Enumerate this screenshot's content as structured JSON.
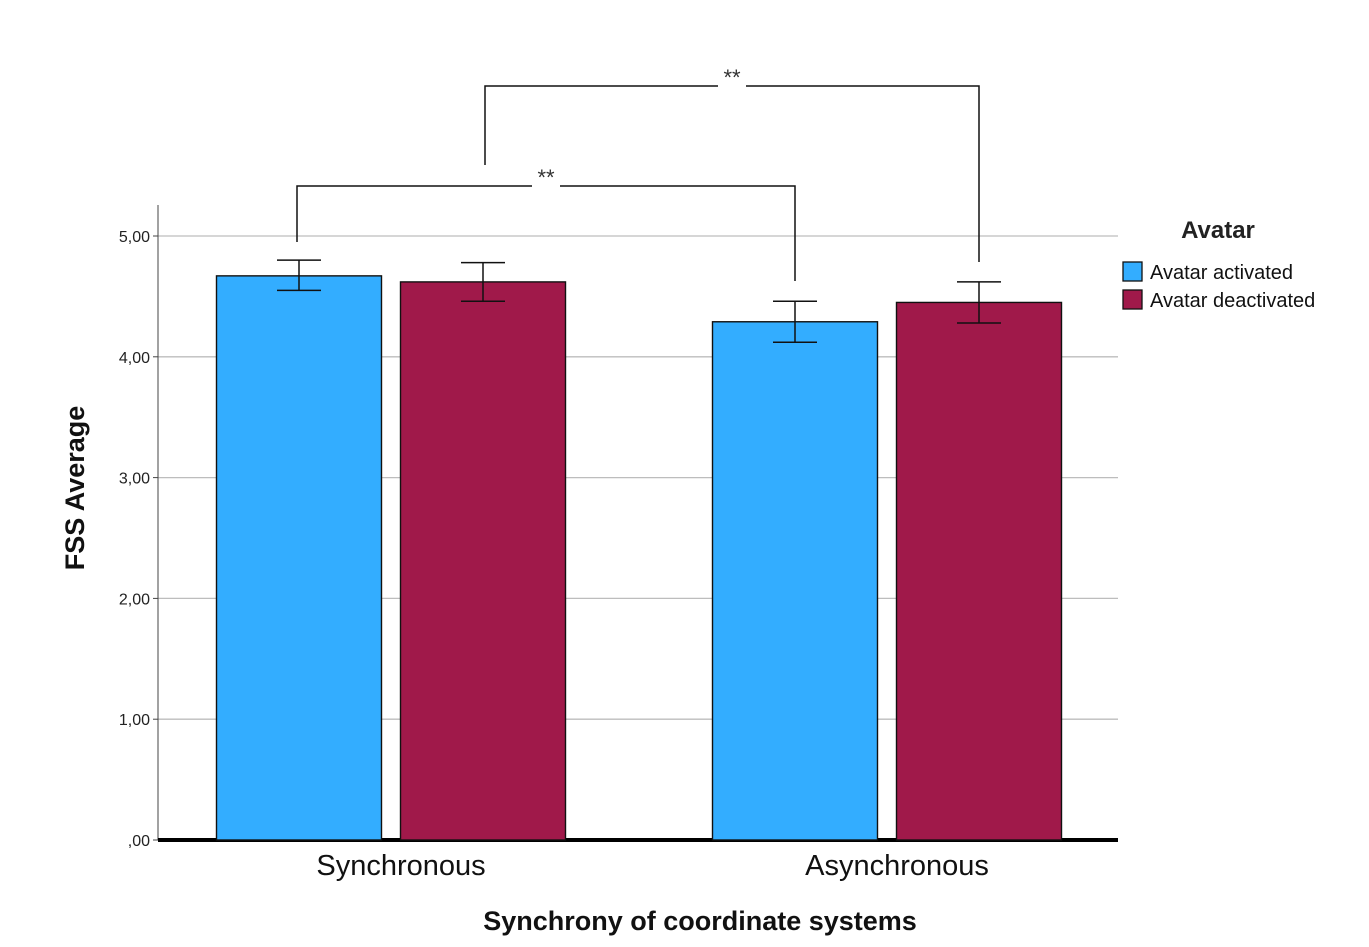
{
  "chart_data": {
    "type": "bar",
    "title": "",
    "xlabel": "Synchrony of coordinate systems",
    "ylabel": "FSS Average",
    "categories": [
      "Synchronous",
      "Asynchronous"
    ],
    "ylim": [
      0,
      5.4
    ],
    "yticks": [
      0,
      1,
      2,
      3,
      4,
      5
    ],
    "ytick_labels": [
      ",00",
      "1,00",
      "2,00",
      "3,00",
      "4,00",
      "5,00"
    ],
    "grid": true,
    "legend": {
      "title": "Avatar",
      "placement": "right"
    },
    "series": [
      {
        "name": "Avatar activated",
        "color": "#33adff",
        "values": [
          4.67,
          4.29
        ],
        "error_low": [
          4.55,
          4.12
        ],
        "error_high": [
          4.8,
          4.46
        ]
      },
      {
        "name": "Avatar deactivated",
        "color": "#a0194a",
        "values": [
          4.62,
          4.45
        ],
        "error_low": [
          4.46,
          4.28
        ],
        "error_high": [
          4.78,
          4.62
        ]
      }
    ],
    "significance": [
      {
        "label": "**",
        "from": {
          "category": 0,
          "series": 0
        },
        "to": {
          "category": 1,
          "series": 0
        }
      },
      {
        "label": "**",
        "from": {
          "category": 0,
          "series": 1
        },
        "to": {
          "category": 1,
          "series": 1
        }
      }
    ]
  }
}
